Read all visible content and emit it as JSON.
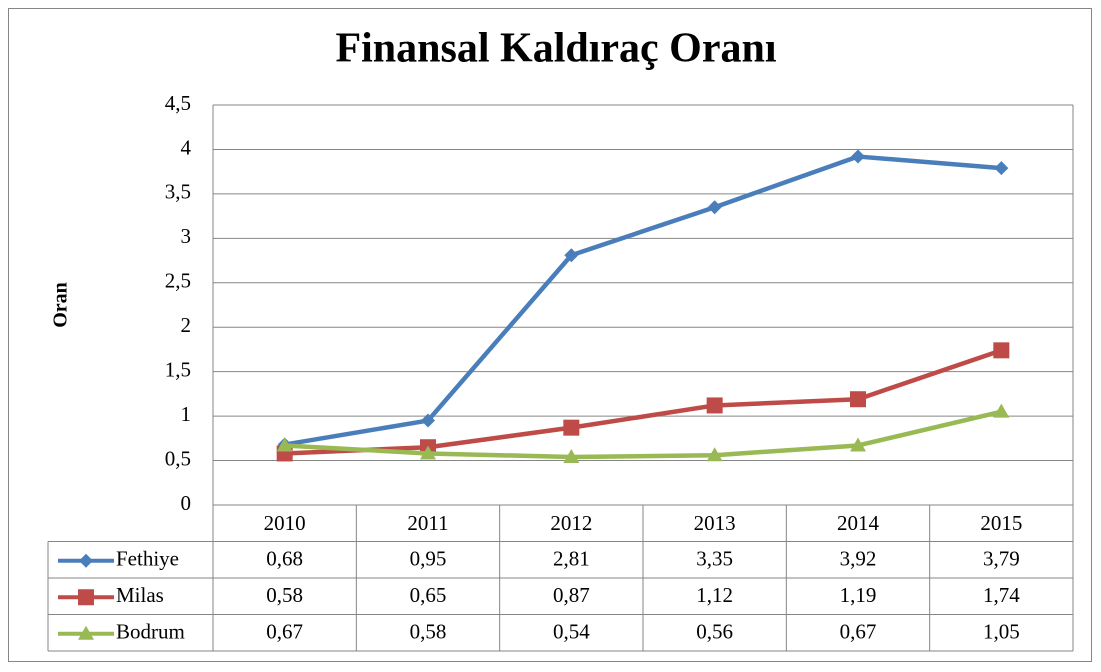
{
  "chart_data": {
    "type": "line",
    "title": "Finansal Kaldıraç Oranı",
    "y_label": "Oran",
    "categories": [
      "2010",
      "2011",
      "2012",
      "2013",
      "2014",
      "2015"
    ],
    "series": [
      {
        "name": "Fethiye",
        "color": "#4a7ebb",
        "marker": "diamond",
        "values": [
          0.68,
          0.95,
          2.81,
          3.35,
          3.92,
          3.79
        ],
        "value_labels": [
          "0,68",
          "0,95",
          "2,81",
          "3,35",
          "3,92",
          "3,79"
        ]
      },
      {
        "name": "Milas",
        "color": "#be4b48",
        "marker": "square",
        "values": [
          0.58,
          0.65,
          0.87,
          1.12,
          1.19,
          1.74
        ],
        "value_labels": [
          "0,58",
          "0,65",
          "0,87",
          "1,12",
          "1,19",
          "1,74"
        ]
      },
      {
        "name": "Bodrum",
        "color": "#98b954",
        "marker": "triangle",
        "values": [
          0.67,
          0.58,
          0.54,
          0.56,
          0.67,
          1.05
        ],
        "value_labels": [
          "0,67",
          "0,58",
          "0,54",
          "0,56",
          "0,67",
          "1,05"
        ]
      }
    ],
    "ylim": [
      0,
      4.5
    ],
    "yticks": [
      0,
      {
        "value": 0.5,
        "label": "0,5"
      },
      1,
      {
        "value": 1.5,
        "label": "1,5"
      },
      2,
      {
        "value": 2.5,
        "label": "2,5"
      },
      3,
      {
        "value": 3.5,
        "label": "3,5"
      },
      4,
      {
        "value": 4.5,
        "label": "4,5"
      }
    ],
    "grid": true
  }
}
